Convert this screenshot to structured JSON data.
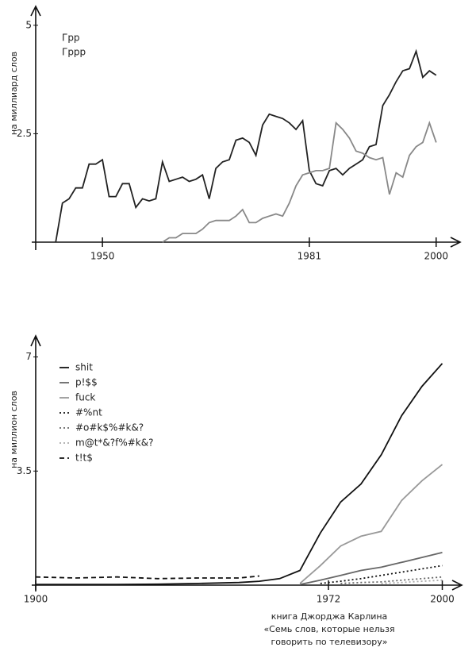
{
  "chart_data": [
    {
      "type": "line",
      "y_label": "на миллиард слов",
      "x": [
        1943,
        1944,
        1945,
        1946,
        1947,
        1948,
        1949,
        1950,
        1951,
        1952,
        1953,
        1954,
        1955,
        1956,
        1957,
        1958,
        1959,
        1960,
        1961,
        1962,
        1963,
        1964,
        1965,
        1966,
        1967,
        1968,
        1969,
        1970,
        1971,
        1972,
        1973,
        1974,
        1975,
        1976,
        1977,
        1978,
        1979,
        1980,
        1981,
        1982,
        1983,
        1984,
        1985,
        1986,
        1987,
        1988,
        1989,
        1990,
        1991,
        1992,
        1993,
        1994,
        1995,
        1996,
        1997,
        1998,
        1999,
        2000
      ],
      "series": [
        {
          "name": "Грр",
          "color": "#222222",
          "style": "solid",
          "values": [
            0,
            0.9,
            1.0,
            1.25,
            1.25,
            1.8,
            1.8,
            1.9,
            1.05,
            1.05,
            1.35,
            1.35,
            0.8,
            1.0,
            0.95,
            1.0,
            1.85,
            1.4,
            1.45,
            1.5,
            1.4,
            1.45,
            1.55,
            1.0,
            1.7,
            1.85,
            1.9,
            2.35,
            2.4,
            2.3,
            2.0,
            2.7,
            2.95,
            2.9,
            2.85,
            2.75,
            2.6,
            2.8,
            1.65,
            1.35,
            1.3,
            1.65,
            1.7,
            1.55,
            1.7,
            1.8,
            1.9,
            2.2,
            2.25,
            3.15,
            3.4,
            3.7,
            3.95,
            4.0,
            4.4,
            3.8,
            3.95,
            3.85
          ]
        },
        {
          "name": "Гррр",
          "color": "#888888",
          "style": "solid",
          "values": [
            null,
            null,
            null,
            null,
            null,
            null,
            null,
            null,
            null,
            null,
            null,
            null,
            null,
            null,
            null,
            null,
            0,
            0.1,
            0.1,
            0.2,
            0.2,
            0.2,
            0.3,
            0.45,
            0.5,
            0.5,
            0.5,
            0.6,
            0.75,
            0.45,
            0.45,
            0.55,
            0.6,
            0.65,
            0.6,
            0.9,
            1.3,
            1.55,
            1.6,
            1.65,
            1.65,
            1.7,
            2.75,
            2.6,
            2.4,
            2.1,
            2.05,
            1.95,
            1.9,
            1.95,
            1.1,
            1.6,
            1.5,
            2.0,
            2.2,
            2.3,
            2.75,
            2.3
          ]
        }
      ],
      "xlim": [
        1940,
        2003
      ],
      "xticks": [
        1950,
        1981,
        2000
      ],
      "ylim": [
        0,
        5.4
      ],
      "yticks": [
        2.5,
        5
      ],
      "legend": "upper left"
    },
    {
      "type": "line",
      "y_label": "на миллион слов",
      "x": [
        1900,
        1910,
        1920,
        1930,
        1940,
        1950,
        1955,
        1960,
        1965,
        1970,
        1975,
        1980,
        1985,
        1990,
        1995,
        2000
      ],
      "series": [
        {
          "name": "shit",
          "color": "#111111",
          "style": "solid",
          "values": [
            0.02,
            0.02,
            0.02,
            0.03,
            0.05,
            0.08,
            0.12,
            0.2,
            0.45,
            1.6,
            2.55,
            3.1,
            4.0,
            5.2,
            6.1,
            6.8
          ]
        },
        {
          "name": "p!$$",
          "color": "#666666",
          "style": "solid",
          "values": [
            null,
            null,
            null,
            null,
            null,
            null,
            null,
            null,
            0.02,
            0.15,
            0.3,
            0.45,
            0.55,
            0.7,
            0.85,
            1.0
          ]
        },
        {
          "name": "fuck",
          "color": "#999999",
          "style": "solid",
          "values": [
            null,
            null,
            null,
            null,
            null,
            null,
            null,
            null,
            0.05,
            0.6,
            1.2,
            1.5,
            1.65,
            2.6,
            3.2,
            3.7
          ]
        },
        {
          "name": "#%nt",
          "color": "#111111",
          "style": "dotted",
          "values": [
            null,
            null,
            null,
            null,
            null,
            null,
            null,
            null,
            null,
            0.05,
            0.12,
            0.2,
            0.3,
            0.4,
            0.5,
            0.6
          ]
        },
        {
          "name": "#o#k$%#k&?",
          "color": "#666666",
          "style": "dotted",
          "values": [
            null,
            null,
            null,
            null,
            null,
            null,
            null,
            null,
            null,
            null,
            0.05,
            0.08,
            0.1,
            0.15,
            0.2,
            0.25
          ]
        },
        {
          "name": "m@t*&?f%#k&?",
          "color": "#aaaaaa",
          "style": "dotted",
          "values": [
            null,
            null,
            null,
            null,
            null,
            null,
            null,
            null,
            null,
            null,
            null,
            null,
            0.05,
            0.08,
            0.12,
            0.15
          ]
        },
        {
          "name": "t!t$",
          "color": "#111111",
          "style": "dashed",
          "values": [
            0.25,
            0.22,
            0.25,
            0.2,
            0.22,
            0.22,
            0.28,
            null,
            null,
            null,
            null,
            null,
            null,
            null,
            null,
            null
          ]
        }
      ],
      "xlim": [
        1900,
        2004
      ],
      "xticks": [
        1900,
        1972,
        2000
      ],
      "ylim": [
        0,
        7.6
      ],
      "yticks": [
        3.5,
        7
      ],
      "legend": "upper left",
      "annotations": [
        "книга Джорджа Карлина",
        "«Семь слов, которые нельзя",
        "говорить по телевизору»"
      ]
    }
  ]
}
